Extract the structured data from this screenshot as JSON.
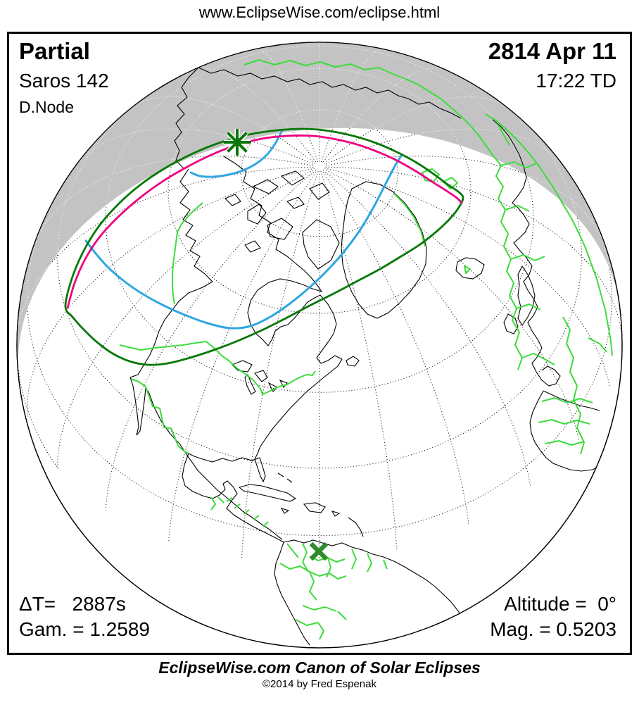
{
  "header": {
    "url": "www.EclipseWise.com/eclipse.html"
  },
  "panel": {
    "type": "Partial",
    "saros": "Saros 142",
    "node": "D.Node",
    "date": "2814 Apr 11",
    "time": "17:22 TD",
    "delta_t": "ΔT=   2887s",
    "gamma": "Gam. = 1.2589",
    "altitude": "Altitude =  0°",
    "magnitude": "Mag. = 0.5203"
  },
  "footer": {
    "title": "EclipseWise.com Canon of Solar Eclipses",
    "copyright": "©2014 by Fred Espenak"
  },
  "map": {
    "projection": "orthographic globe",
    "markers": {
      "greatest_eclipse": "asterisk-marker",
      "subsolar_point": "x-marker"
    },
    "colors": {
      "background": "#ffffff",
      "border": "#000000",
      "night_shading": "#c3c3c3",
      "coastline": "#000000",
      "country_border": "#3cdc3c",
      "penumbra_limit": "#077807",
      "sunrise_sunset_curve": "#ef0082",
      "rise_set_curve": "#2fa7e0",
      "greatest_eclipse_marker": "#077807",
      "subsolar_marker": "#2e8b2e",
      "graticule_day": "#000000",
      "graticule_night": "#ffffff"
    }
  }
}
